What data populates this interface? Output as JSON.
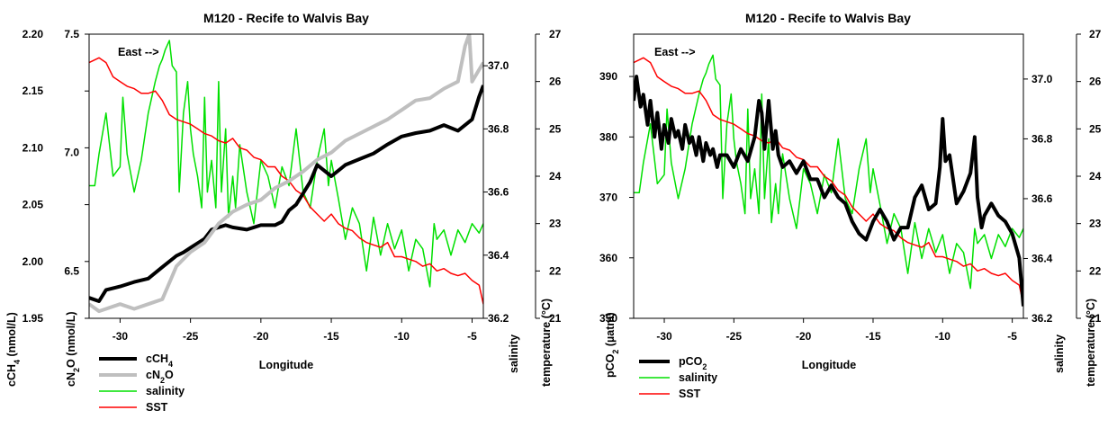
{
  "chart_data": [
    {
      "type": "line",
      "title": "M120 - Recife to Walvis Bay",
      "annotation": "East -->",
      "xlabel": "Longitude",
      "xlim": [
        -32.2,
        -4.2
      ],
      "xticks": [
        -30,
        -25,
        -20,
        -15,
        -10,
        -5
      ],
      "axes": [
        {
          "id": "ch4",
          "label": "cCH4 (nmol/L)",
          "label_sub": "4",
          "ylim": [
            1.95,
            2.2
          ],
          "ticks": [
            "1.95",
            "2.00",
            "2.05",
            "2.10",
            "2.15",
            "2.20"
          ]
        },
        {
          "id": "n2o",
          "label": "cN2O (nmol/L)",
          "label_sub": "2",
          "ylim": [
            6.3,
            7.5
          ],
          "ticks": [
            "6.5",
            "7.0",
            "7.5"
          ]
        },
        {
          "id": "sal",
          "label": "salinity",
          "ylim": [
            36.2,
            37.1
          ],
          "ticks": [
            "36.2",
            "36.4",
            "36.6",
            "36.8",
            "37.0"
          ]
        },
        {
          "id": "sst",
          "label": "temperature (°C)",
          "ylim": [
            21,
            27
          ],
          "ticks": [
            "21",
            "22",
            "23",
            "24",
            "25",
            "26",
            "27"
          ]
        }
      ],
      "legend": [
        {
          "label": "cCH4",
          "sub": "4"
        },
        {
          "label": "cN2O",
          "sub": "2"
        },
        {
          "label": "salinity",
          "sub": ""
        },
        {
          "label": "SST",
          "sub": ""
        }
      ],
      "series": [
        {
          "name": "cCH4",
          "axis": "ch4",
          "color": "#000000",
          "width": 4,
          "x": [
            -32.2,
            -31.5,
            -31,
            -30,
            -29,
            -28,
            -27,
            -26,
            -25.5,
            -25,
            -24,
            -23.5,
            -23,
            -22.5,
            -22,
            -21,
            -20,
            -19,
            -18.5,
            -18,
            -17.5,
            -17,
            -16.5,
            -16,
            -15.5,
            -15,
            -14,
            -13,
            -12,
            -11,
            -10,
            -9,
            -8,
            -7,
            -6,
            -5,
            -4.5,
            -4.2
          ],
          "y": [
            1.968,
            1.965,
            1.975,
            1.978,
            1.982,
            1.985,
            1.995,
            2.005,
            2.008,
            2.012,
            2.02,
            2.028,
            2.03,
            2.032,
            2.03,
            2.028,
            2.032,
            2.032,
            2.035,
            2.045,
            2.05,
            2.06,
            2.07,
            2.085,
            2.08,
            2.075,
            2.085,
            2.09,
            2.095,
            2.103,
            2.11,
            2.113,
            2.115,
            2.12,
            2.115,
            2.125,
            2.145,
            2.155
          ]
        },
        {
          "name": "cN2O",
          "axis": "n2o",
          "color": "#bfbfbf",
          "width": 4,
          "x": [
            -32.2,
            -31.5,
            -31,
            -30,
            -29,
            -28,
            -27,
            -26.5,
            -26,
            -25,
            -24,
            -23,
            -22,
            -21,
            -20,
            -19,
            -18,
            -17,
            -16,
            -15,
            -14,
            -13,
            -12,
            -11,
            -10,
            -9,
            -8,
            -7,
            -6,
            -5.5,
            -5.2,
            -5,
            -4.5,
            -4.2
          ],
          "y": [
            6.36,
            6.33,
            6.34,
            6.36,
            6.34,
            6.36,
            6.38,
            6.45,
            6.52,
            6.58,
            6.62,
            6.7,
            6.75,
            6.78,
            6.8,
            6.85,
            6.88,
            6.92,
            6.97,
            7.0,
            7.05,
            7.08,
            7.11,
            7.14,
            7.18,
            7.22,
            7.23,
            7.27,
            7.3,
            7.45,
            7.5,
            7.3,
            7.35,
            7.38
          ]
        },
        {
          "name": "salinity",
          "axis": "sal",
          "color": "#00e000",
          "width": 1.5,
          "x": [
            -32.2,
            -31.8,
            -31.5,
            -31,
            -30.5,
            -30,
            -29.8,
            -29.5,
            -29,
            -28.5,
            -28,
            -27.5,
            -27.2,
            -27,
            -26.8,
            -26.5,
            -26.3,
            -26,
            -25.8,
            -25.5,
            -25.2,
            -25,
            -24.8,
            -24.5,
            -24.2,
            -24,
            -23.8,
            -23.5,
            -23.2,
            -23,
            -22.8,
            -22.5,
            -22.3,
            -22,
            -21.8,
            -21.5,
            -21,
            -20.5,
            -20,
            -19.5,
            -19,
            -18.5,
            -18,
            -17.5,
            -17,
            -16.5,
            -16,
            -15.5,
            -15.2,
            -15,
            -14.5,
            -14,
            -13.5,
            -13,
            -12.5,
            -12,
            -11.5,
            -11,
            -10.5,
            -10,
            -9.5,
            -9,
            -8.5,
            -8,
            -7.7,
            -7.5,
            -7,
            -6.5,
            -6,
            -5.5,
            -5,
            -4.5,
            -4.2
          ],
          "y": [
            36.62,
            36.62,
            36.72,
            36.85,
            36.65,
            36.68,
            36.9,
            36.72,
            36.6,
            36.7,
            36.85,
            36.95,
            37.0,
            37.02,
            37.05,
            37.08,
            37.0,
            36.98,
            36.6,
            36.85,
            36.95,
            36.8,
            36.72,
            36.65,
            36.55,
            36.9,
            36.6,
            36.7,
            36.55,
            36.95,
            36.6,
            36.8,
            36.52,
            36.65,
            36.55,
            36.75,
            36.6,
            36.5,
            36.7,
            36.65,
            36.55,
            36.68,
            36.62,
            36.8,
            36.6,
            36.55,
            36.7,
            36.8,
            36.62,
            36.7,
            36.58,
            36.45,
            36.55,
            36.5,
            36.35,
            36.52,
            36.4,
            36.5,
            36.42,
            36.48,
            36.35,
            36.45,
            36.42,
            36.3,
            36.5,
            36.45,
            36.48,
            36.4,
            36.48,
            36.44,
            36.5,
            36.47,
            36.5
          ]
        },
        {
          "name": "SST",
          "axis": "sst",
          "color": "#ff0000",
          "width": 1.5,
          "x": [
            -32.2,
            -31.5,
            -31,
            -30.5,
            -30,
            -29.5,
            -29,
            -28.5,
            -28,
            -27.5,
            -27,
            -26.5,
            -26,
            -25.5,
            -25,
            -24.5,
            -24,
            -23.5,
            -23,
            -22.5,
            -22,
            -21.5,
            -21,
            -20.5,
            -20,
            -19.5,
            -19,
            -18.5,
            -18,
            -17.5,
            -17,
            -16.5,
            -16,
            -15.5,
            -15,
            -14.5,
            -14,
            -13.5,
            -13,
            -12.5,
            -12,
            -11.5,
            -11,
            -10.5,
            -10,
            -9.5,
            -9,
            -8.5,
            -8,
            -7.5,
            -7,
            -6.5,
            -6,
            -5.5,
            -5,
            -4.5,
            -4.2
          ],
          "y": [
            26.4,
            26.5,
            26.4,
            26.1,
            26.0,
            25.9,
            25.85,
            25.75,
            25.75,
            25.8,
            25.6,
            25.3,
            25.2,
            25.15,
            25.1,
            25.0,
            24.9,
            24.85,
            24.75,
            24.7,
            24.8,
            24.6,
            24.55,
            24.4,
            24.35,
            24.2,
            24.2,
            24.0,
            23.9,
            23.7,
            23.6,
            23.35,
            23.2,
            23.05,
            23.2,
            23.0,
            22.9,
            22.85,
            22.7,
            22.6,
            22.55,
            22.5,
            22.6,
            22.3,
            22.3,
            22.25,
            22.2,
            22.1,
            22.15,
            22.0,
            22.05,
            21.95,
            21.9,
            21.95,
            21.8,
            21.7,
            21.3
          ]
        }
      ]
    },
    {
      "type": "line",
      "title": "M120 - Recife to Walvis Bay",
      "annotation": "East -->",
      "xlabel": "Longitude",
      "xlim": [
        -32.2,
        -4.2
      ],
      "xticks": [
        -30,
        -25,
        -20,
        -15,
        -10,
        -5
      ],
      "axes": [
        {
          "id": "pco2",
          "label": "pCO2 (µatm)",
          "label_sub": "2",
          "ylim": [
            350,
            397
          ],
          "ticks": [
            "350",
            "360",
            "370",
            "380",
            "390"
          ]
        },
        {
          "id": "sal",
          "label": "salinity",
          "ylim": [
            36.2,
            37.15
          ],
          "ticks": [
            "36.2",
            "36.4",
            "36.6",
            "36.8",
            "37.0"
          ]
        },
        {
          "id": "sst",
          "label": "temperature (°C)",
          "ylim": [
            21,
            27
          ],
          "ticks": [
            "21",
            "22",
            "23",
            "24",
            "25",
            "26",
            "27"
          ]
        }
      ],
      "legend": [
        {
          "label": "pCO2",
          "sub": "2"
        },
        {
          "label": "salinity",
          "sub": ""
        },
        {
          "label": "SST",
          "sub": ""
        }
      ],
      "series": [
        {
          "name": "pCO2",
          "axis": "pco2",
          "color": "#000000",
          "width": 4,
          "x": [
            -32.2,
            -32,
            -31.7,
            -31.5,
            -31.2,
            -31,
            -30.7,
            -30.5,
            -30.2,
            -30,
            -29.7,
            -29.5,
            -29.2,
            -29,
            -28.7,
            -28.5,
            -28.2,
            -28,
            -27.7,
            -27.5,
            -27.2,
            -27,
            -26.7,
            -26.5,
            -26.2,
            -26,
            -25.5,
            -25,
            -24.5,
            -24,
            -23.5,
            -23.2,
            -23,
            -22.8,
            -22.5,
            -22.2,
            -22,
            -21.8,
            -21.5,
            -21,
            -20.5,
            -20,
            -19.5,
            -19,
            -18.5,
            -18,
            -17.5,
            -17,
            -16.5,
            -16,
            -15.5,
            -15,
            -14.5,
            -14,
            -13.5,
            -13,
            -12.5,
            -12,
            -11.5,
            -11,
            -10.5,
            -10.2,
            -10,
            -9.8,
            -9.5,
            -9,
            -8.5,
            -8,
            -7.7,
            -7.5,
            -7.2,
            -7,
            -6.5,
            -6,
            -5.5,
            -5,
            -4.5,
            -4.2
          ],
          "y": [
            386,
            390,
            385,
            387,
            382,
            386,
            380,
            384,
            378,
            382,
            379,
            383,
            380,
            381,
            378,
            382,
            379,
            380,
            377,
            380,
            376,
            379,
            377,
            378,
            375,
            377,
            377,
            375,
            378,
            376,
            380,
            386,
            384,
            378,
            386,
            378,
            381,
            377,
            375,
            376,
            374,
            376,
            373,
            373,
            370,
            372,
            370,
            369,
            366,
            364,
            363,
            366,
            368,
            366,
            363,
            365,
            365,
            370,
            372,
            368,
            369,
            375,
            383,
            376,
            377,
            369,
            371,
            374,
            380,
            370,
            365,
            367,
            369,
            367,
            366,
            364,
            360,
            352
          ]
        },
        {
          "name": "salinity",
          "axis": "sal",
          "color": "#00e000",
          "width": 1.5,
          "x": [
            -32.2,
            -31.8,
            -31.5,
            -31,
            -30.5,
            -30,
            -29.8,
            -29.5,
            -29,
            -28.5,
            -28,
            -27.5,
            -27.2,
            -27,
            -26.8,
            -26.5,
            -26.3,
            -26,
            -25.8,
            -25.5,
            -25.2,
            -25,
            -24.8,
            -24.5,
            -24.2,
            -24,
            -23.8,
            -23.5,
            -23.2,
            -23,
            -22.8,
            -22.5,
            -22.3,
            -22,
            -21.8,
            -21.5,
            -21,
            -20.5,
            -20,
            -19.5,
            -19,
            -18.5,
            -18,
            -17.5,
            -17,
            -16.5,
            -16,
            -15.5,
            -15.2,
            -15,
            -14.5,
            -14,
            -13.5,
            -13,
            -12.5,
            -12,
            -11.5,
            -11,
            -10.5,
            -10,
            -9.5,
            -9,
            -8.5,
            -8,
            -7.7,
            -7.5,
            -7,
            -6.5,
            -6,
            -5.5,
            -5,
            -4.5,
            -4.2
          ],
          "y": [
            36.62,
            36.62,
            36.72,
            36.85,
            36.65,
            36.68,
            36.9,
            36.72,
            36.6,
            36.7,
            36.85,
            36.95,
            37.0,
            37.02,
            37.05,
            37.08,
            37.0,
            36.98,
            36.6,
            36.85,
            36.95,
            36.8,
            36.72,
            36.65,
            36.55,
            36.9,
            36.6,
            36.7,
            36.55,
            36.95,
            36.6,
            36.8,
            36.52,
            36.65,
            36.55,
            36.75,
            36.6,
            36.5,
            36.7,
            36.65,
            36.55,
            36.68,
            36.62,
            36.8,
            36.6,
            36.55,
            36.7,
            36.8,
            36.62,
            36.7,
            36.58,
            36.45,
            36.55,
            36.5,
            36.35,
            36.52,
            36.4,
            36.5,
            36.42,
            36.48,
            36.35,
            36.45,
            36.42,
            36.3,
            36.5,
            36.45,
            36.48,
            36.4,
            36.48,
            36.44,
            36.5,
            36.47,
            36.5
          ]
        },
        {
          "name": "SST",
          "axis": "sst",
          "color": "#ff0000",
          "width": 1.5,
          "x": [
            -32.2,
            -31.5,
            -31,
            -30.5,
            -30,
            -29.5,
            -29,
            -28.5,
            -28,
            -27.5,
            -27,
            -26.5,
            -26,
            -25.5,
            -25,
            -24.5,
            -24,
            -23.5,
            -23,
            -22.5,
            -22,
            -21.5,
            -21,
            -20.5,
            -20,
            -19.5,
            -19,
            -18.5,
            -18,
            -17.5,
            -17,
            -16.5,
            -16,
            -15.5,
            -15,
            -14.5,
            -14,
            -13.5,
            -13,
            -12.5,
            -12,
            -11.5,
            -11,
            -10.5,
            -10,
            -9.5,
            -9,
            -8.5,
            -8,
            -7.5,
            -7,
            -6.5,
            -6,
            -5.5,
            -5,
            -4.5,
            -4.2
          ],
          "y": [
            26.4,
            26.5,
            26.4,
            26.1,
            26.0,
            25.9,
            25.85,
            25.75,
            25.75,
            25.8,
            25.6,
            25.3,
            25.2,
            25.15,
            25.1,
            25.0,
            24.9,
            24.85,
            24.75,
            24.7,
            24.8,
            24.6,
            24.55,
            24.4,
            24.35,
            24.2,
            24.2,
            24.0,
            23.9,
            23.7,
            23.6,
            23.35,
            23.2,
            23.05,
            23.2,
            23.0,
            22.9,
            22.85,
            22.7,
            22.6,
            22.55,
            22.5,
            22.6,
            22.3,
            22.3,
            22.25,
            22.2,
            22.1,
            22.15,
            22.0,
            22.05,
            21.95,
            21.9,
            21.95,
            21.8,
            21.7,
            21.3
          ]
        }
      ]
    }
  ]
}
